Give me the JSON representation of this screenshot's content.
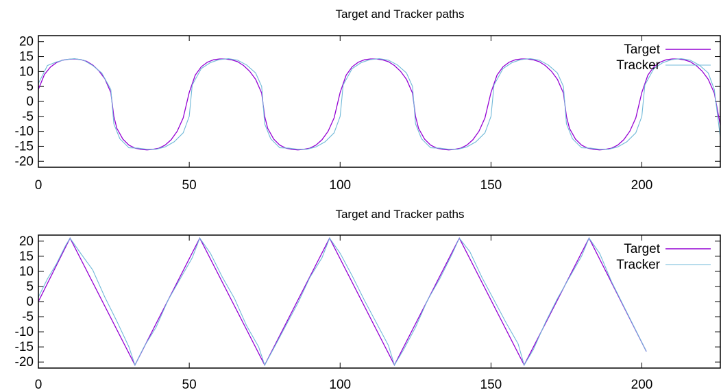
{
  "chart_data": [
    {
      "type": "line",
      "title": "Target and Tracker paths",
      "xlim": [
        0,
        226
      ],
      "ylim": [
        -22,
        22
      ],
      "xticks": [
        "0",
        "50",
        "100",
        "150",
        "200"
      ],
      "xtick_values": [
        0,
        50,
        100,
        150,
        200
      ],
      "yticks": [
        "20",
        "15",
        "10",
        "5",
        "0",
        "-5",
        "-10",
        "-15",
        "-20"
      ],
      "ytick_values": [
        20,
        15,
        10,
        5,
        0,
        -5,
        -10,
        -15,
        -20
      ],
      "legend_position": "top-right",
      "series": [
        {
          "name": "Target",
          "color": "#9400d3",
          "x": [
            0,
            2,
            4,
            6,
            8,
            10,
            12,
            14,
            16,
            18,
            20,
            22,
            24,
            25,
            26,
            28,
            30,
            32,
            34,
            36,
            38,
            40,
            42,
            44,
            46,
            48,
            50,
            52,
            54,
            56,
            58,
            60,
            62,
            64,
            66,
            68,
            70,
            72,
            74,
            75,
            76,
            78,
            80,
            82,
            84,
            86,
            88,
            90,
            92,
            94,
            96,
            98,
            100,
            102,
            104,
            106,
            108,
            110,
            112,
            114,
            116,
            118,
            120,
            122,
            124,
            125,
            126,
            128,
            130,
            132,
            134,
            136,
            138,
            140,
            142,
            144,
            146,
            148,
            150,
            152,
            154,
            156,
            158,
            160,
            162,
            164,
            166,
            168,
            170,
            172,
            174,
            175,
            176,
            178,
            180,
            182,
            184,
            186,
            188,
            190,
            192,
            194,
            196,
            198,
            200,
            202,
            204,
            206,
            208,
            210,
            212,
            214,
            216,
            218,
            220,
            222,
            224,
            226
          ],
          "y": [
            4.0,
            9.0,
            11.5,
            13.0,
            13.8,
            14.1,
            14.2,
            14.0,
            13.4,
            12.2,
            10.3,
            7.6,
            3.0,
            -5.0,
            -9.0,
            -12.6,
            -14.6,
            -15.6,
            -16.0,
            -16.2,
            -16.0,
            -15.6,
            -14.6,
            -12.8,
            -10.0,
            -5.5,
            3.0,
            8.8,
            11.6,
            13.1,
            13.9,
            14.2,
            14.2,
            13.9,
            13.3,
            12.0,
            10.1,
            7.4,
            2.8,
            -5.0,
            -9.0,
            -12.6,
            -14.6,
            -15.6,
            -16.0,
            -16.2,
            -16.0,
            -15.6,
            -14.6,
            -12.8,
            -10.0,
            -5.5,
            3.0,
            8.8,
            11.6,
            13.1,
            13.9,
            14.2,
            14.2,
            13.9,
            13.3,
            12.0,
            10.1,
            7.4,
            2.8,
            -5.0,
            -9.0,
            -12.6,
            -14.6,
            -15.6,
            -16.0,
            -16.2,
            -16.0,
            -15.6,
            -14.6,
            -12.8,
            -10.0,
            -5.5,
            3.0,
            8.8,
            11.6,
            13.1,
            13.9,
            14.2,
            14.2,
            13.9,
            13.3,
            12.0,
            10.1,
            7.4,
            2.8,
            -5.0,
            -9.0,
            -12.6,
            -14.6,
            -15.6,
            -16.0,
            -16.2,
            -16.0,
            -15.6,
            -14.6,
            -12.8,
            -10.0,
            -5.5,
            3.0,
            8.8,
            11.6,
            13.1,
            13.9,
            14.2,
            14.2,
            13.9,
            13.3,
            12.0,
            10.1,
            7.4,
            2.8,
            -8.0
          ]
        },
        {
          "name": "Tracker",
          "color": "#6fb8d8",
          "x": [
            0,
            3,
            6,
            9,
            12,
            15,
            18,
            21,
            24,
            25,
            27,
            30,
            33,
            36,
            39,
            42,
            45,
            48,
            50,
            51,
            54,
            57,
            60,
            63,
            66,
            69,
            72,
            74,
            75,
            77,
            80,
            83,
            86,
            89,
            92,
            95,
            98,
            100,
            101,
            104,
            107,
            110,
            113,
            116,
            119,
            122,
            124,
            125,
            127,
            130,
            133,
            136,
            139,
            142,
            145,
            148,
            150,
            151,
            154,
            157,
            160,
            163,
            166,
            169,
            172,
            174,
            175,
            177,
            180,
            183,
            186,
            189,
            192,
            195,
            198,
            200,
            201,
            204,
            207,
            210,
            213,
            216,
            219,
            222,
            224,
            226
          ],
          "y": [
            6.0,
            12.0,
            13.2,
            14.0,
            14.3,
            13.8,
            12.0,
            9.5,
            4.0,
            -7.5,
            -12.5,
            -15.5,
            -15.6,
            -16.0,
            -16.0,
            -15.2,
            -13.5,
            -10.5,
            -5.0,
            5.5,
            11.0,
            13.0,
            14.0,
            14.3,
            13.8,
            12.2,
            9.5,
            5.0,
            -7.5,
            -12.5,
            -15.5,
            -15.6,
            -16.0,
            -16.0,
            -15.2,
            -13.5,
            -10.5,
            -5.0,
            5.5,
            11.0,
            13.0,
            14.0,
            14.3,
            13.8,
            12.2,
            9.5,
            5.0,
            -7.5,
            -12.5,
            -15.5,
            -15.6,
            -16.0,
            -16.0,
            -15.2,
            -13.5,
            -10.5,
            -5.0,
            5.5,
            11.0,
            13.0,
            14.0,
            14.3,
            13.8,
            12.2,
            9.5,
            5.0,
            -7.5,
            -12.5,
            -15.5,
            -15.6,
            -16.0,
            -16.0,
            -15.2,
            -13.5,
            -10.5,
            -5.0,
            5.5,
            11.0,
            13.0,
            14.0,
            14.3,
            13.8,
            12.2,
            9.5,
            4.0,
            -12.0
          ]
        }
      ]
    },
    {
      "type": "line",
      "title": "Target and Tracker paths",
      "xlim": [
        0,
        226
      ],
      "ylim": [
        -22,
        22
      ],
      "xticks": [
        "0",
        "50",
        "100",
        "150",
        "200"
      ],
      "xtick_values": [
        0,
        50,
        100,
        150,
        200
      ],
      "yticks": [
        "20",
        "15",
        "10",
        "5",
        "0",
        "-5",
        "-10",
        "-15",
        "-20"
      ],
      "ytick_values": [
        20,
        15,
        10,
        5,
        0,
        -5,
        -10,
        -15,
        -20
      ],
      "legend_position": "top-right",
      "series": [
        {
          "name": "Target",
          "color": "#9400d3",
          "x": [
            0,
            10.5,
            32,
            53.5,
            75,
            96.5,
            118,
            139.5,
            161,
            182.5,
            201.5
          ],
          "y": [
            0,
            21,
            -21,
            21,
            -21,
            21,
            -21,
            21,
            -21,
            21,
            -16.5
          ]
        },
        {
          "name": "Tracker",
          "color": "#6fb8d8",
          "x": [
            0,
            3,
            6,
            9,
            10.5,
            14,
            18,
            22,
            26,
            30,
            32,
            35,
            39,
            43,
            47,
            51,
            53.5,
            57,
            61,
            65,
            69,
            73,
            75,
            78,
            82,
            86,
            90,
            94,
            96.5,
            100,
            104,
            108,
            112,
            116,
            118,
            121,
            125,
            129,
            133,
            137,
            139.5,
            143,
            147,
            151,
            155,
            159,
            161,
            164,
            168,
            172,
            176,
            180,
            182.5,
            186,
            190,
            194,
            198,
            201.5
          ],
          "y": [
            1.5,
            7.5,
            12.5,
            18.5,
            21,
            16.0,
            10.5,
            1.5,
            -6.5,
            -15.0,
            -21,
            -15.0,
            -8.5,
            0.5,
            7.5,
            14.5,
            21,
            16.0,
            8.0,
            1.0,
            -8.0,
            -15.0,
            -21,
            -15.5,
            -8.0,
            -0.5,
            8.0,
            14.5,
            21,
            16.0,
            8.5,
            0.5,
            -7.0,
            -14.5,
            -21,
            -16.0,
            -8.5,
            0.5,
            7.5,
            15.5,
            21,
            16.5,
            8.0,
            0.5,
            -7.0,
            -14.0,
            -21,
            -16.0,
            -7.0,
            1.0,
            8.0,
            15.0,
            21,
            16.0,
            6.5,
            -1.5,
            -9.5,
            -16.5
          ]
        }
      ]
    }
  ]
}
